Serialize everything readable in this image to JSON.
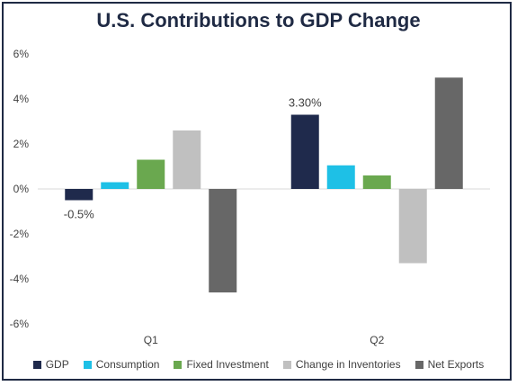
{
  "chart_data": {
    "type": "bar",
    "title": "U.S. Contributions to GDP Change",
    "categories": [
      "Q1",
      "Q2"
    ],
    "series": [
      {
        "name": "GDP",
        "values": [
          -0.5,
          3.3
        ],
        "color": "#1f2a4c"
      },
      {
        "name": "Consumption",
        "values": [
          0.3,
          1.05
        ],
        "color": "#1ec0e6"
      },
      {
        "name": "Fixed Investment",
        "values": [
          1.3,
          0.6
        ],
        "color": "#6aa84f"
      },
      {
        "name": "Change in Inventories",
        "values": [
          2.6,
          -3.3
        ],
        "color": "#c0c0c0"
      },
      {
        "name": "Net Exports",
        "values": [
          -4.6,
          4.95
        ],
        "color": "#676767"
      }
    ],
    "ylim": [
      -6,
      6
    ],
    "yticks": [
      "-6%",
      "-4%",
      "-2%",
      "0%",
      "2%",
      "4%",
      "6%"
    ],
    "data_labels": [
      {
        "series": 0,
        "category": 0,
        "text": "-0.5%"
      },
      {
        "series": 0,
        "category": 1,
        "text": "3.30%"
      }
    ],
    "grid": false,
    "legend_position": "bottom"
  }
}
